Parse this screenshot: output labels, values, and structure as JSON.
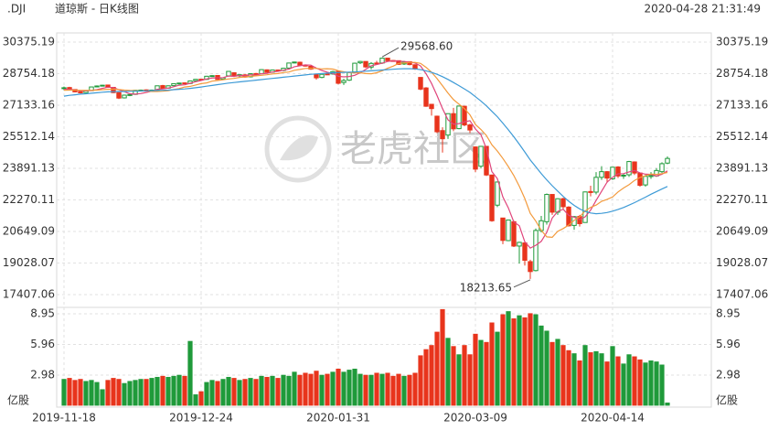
{
  "header": {
    "symbol": ".DJI",
    "name": "道琼斯 - 日K线图",
    "time": "2020-04-28 21:31:49"
  },
  "watermark": "老虎社区",
  "chart_data": {
    "type": "candlestick",
    "categories": [
      "2019-11-18",
      null,
      null,
      null,
      null,
      null,
      null,
      null,
      null,
      null,
      null,
      null,
      null,
      null,
      null,
      null,
      null,
      null,
      null,
      null,
      null,
      null,
      null,
      null,
      null,
      "2019-12-24",
      null,
      null,
      null,
      null,
      null,
      null,
      null,
      null,
      null,
      null,
      null,
      null,
      null,
      null,
      null,
      null,
      null,
      null,
      null,
      null,
      null,
      null,
      null,
      null,
      "2020-01-31",
      null,
      null,
      null,
      null,
      null,
      null,
      null,
      null,
      null,
      null,
      null,
      null,
      null,
      null,
      null,
      null,
      null,
      null,
      null,
      null,
      null,
      null,
      null,
      null,
      "2020-03-09",
      null,
      null,
      null,
      null,
      null,
      null,
      null,
      null,
      null,
      null,
      null,
      null,
      null,
      null,
      null,
      null,
      null,
      null,
      null,
      null,
      null,
      null,
      null,
      null,
      "2020-04-14",
      null,
      null,
      null,
      null,
      null,
      null,
      null,
      null,
      null,
      null
    ],
    "open": [
      28000,
      28040,
      27940,
      27830,
      27780,
      27880,
      28080,
      28130,
      28170,
      28050,
      27780,
      27510,
      27660,
      27690,
      27910,
      27920,
      27890,
      27920,
      28140,
      28010,
      28140,
      28250,
      28280,
      28250,
      28390,
      28470,
      28460,
      28630,
      28660,
      28470,
      28640,
      28800,
      28640,
      28690,
      28590,
      28760,
      28750,
      28950,
      28830,
      28940,
      28920,
      29040,
      29310,
      29340,
      29190,
      29130,
      28720,
      28560,
      28740,
      28740,
      28870,
      28300,
      28420,
      28840,
      29310,
      29380,
      29090,
      29300,
      29300,
      29550,
      29430,
      29420,
      29250,
      29370,
      29210,
      28560,
      28020,
      27180,
      26570,
      25830,
      25600,
      26700,
      25930,
      27080,
      26120,
      24990,
      24000,
      25020,
      23550,
      22000,
      21340,
      20180,
      21150,
      19900,
      20060,
      19100,
      18640,
      20700,
      21150,
      22550,
      21640,
      22330,
      21900,
      20960,
      21420,
      21110,
      22700,
      22670,
      23430,
      23720,
      23350,
      23960,
      23500,
      23560,
      24220,
      23650,
      23040,
      23470,
      23500,
      23720,
      24160
    ],
    "high": [
      28090,
      28080,
      27950,
      27850,
      27900,
      28090,
      28150,
      28180,
      28180,
      28070,
      27800,
      27680,
      27720,
      27920,
      27940,
      27950,
      27940,
      28140,
      28180,
      28150,
      28260,
      28290,
      28300,
      28400,
      28480,
      28480,
      28640,
      28670,
      28670,
      28560,
      28880,
      28820,
      28720,
      28730,
      28780,
      28790,
      28980,
      28970,
      28960,
      28960,
      29060,
      29320,
      29370,
      29370,
      29230,
      29170,
      28730,
      28760,
      28770,
      28900,
      28880,
      28490,
      28850,
      29320,
      29410,
      29390,
      29350,
      29410,
      29568.6,
      29560,
      29450,
      29420,
      29410,
      29370,
      29230,
      28580,
      28060,
      27200,
      26600,
      26000,
      26710,
      27000,
      27110,
      27100,
      26180,
      25020,
      25020,
      25020,
      23560,
      23190,
      21340,
      21260,
      21200,
      20120,
      20100,
      19200,
      20800,
      21450,
      22600,
      22550,
      22350,
      22380,
      21950,
      21450,
      21500,
      22700,
      23000,
      23700,
      24000,
      23750,
      23950,
      24000,
      23600,
      24270,
      24250,
      23650,
      23550,
      23700,
      23900,
      24200,
      24500
    ],
    "low": [
      27900,
      27900,
      27800,
      27730,
      27750,
      27860,
      28060,
      28100,
      28020,
      27750,
      27450,
      27480,
      27600,
      27660,
      27870,
      27850,
      27860,
      27900,
      27980,
      27990,
      28100,
      28230,
      28230,
      28220,
      28360,
      28440,
      28440,
      28600,
      28440,
      28450,
      28600,
      28580,
      28560,
      28550,
      28560,
      28700,
      28730,
      28800,
      28800,
      28890,
      28880,
      29020,
      29280,
      29150,
      29120,
      28950,
      28440,
      28520,
      28700,
      28700,
      28200,
      28170,
      28380,
      28800,
      29250,
      29050,
      28970,
      29240,
      29250,
      29380,
      29380,
      29200,
      29200,
      29180,
      28950,
      27900,
      27050,
      26600,
      25700,
      24700,
      25400,
      25800,
      25900,
      26050,
      25700,
      23700,
      23900,
      23500,
      21150,
      21900,
      20000,
      20150,
      19850,
      19000,
      18900,
      18213.65,
      18600,
      20600,
      21000,
      21500,
      21500,
      21800,
      20900,
      20740,
      20900,
      21100,
      22450,
      22550,
      23300,
      23150,
      23300,
      23400,
      23350,
      23450,
      23550,
      22950,
      22950,
      23350,
      23450,
      23650,
      24100
    ],
    "close": [
      28030,
      27930,
      27820,
      27770,
      27870,
      28070,
      28120,
      28160,
      28050,
      27780,
      27500,
      27650,
      27680,
      27900,
      27910,
      27880,
      27910,
      28130,
      28000,
      28130,
      28240,
      28270,
      28240,
      28380,
      28460,
      28450,
      28620,
      28650,
      28460,
      28540,
      28870,
      28630,
      28700,
      28580,
      28750,
      28740,
      28960,
      28820,
      28940,
      28910,
      29030,
      29300,
      29350,
      29190,
      29150,
      28990,
      28540,
      28720,
      28730,
      28860,
      28260,
      28400,
      28810,
      29290,
      29380,
      29100,
      29280,
      29280,
      29550,
      29420,
      29400,
      29230,
      29350,
      29220,
      28990,
      27960,
      27080,
      26960,
      25770,
      25410,
      26700,
      25920,
      27090,
      26120,
      25860,
      23850,
      25020,
      23550,
      21200,
      23190,
      20190,
      21240,
      19900,
      20090,
      19170,
      18590,
      20700,
      21200,
      22550,
      21640,
      22330,
      21920,
      20940,
      21410,
      21050,
      22680,
      22650,
      23430,
      23720,
      23390,
      23950,
      23500,
      23540,
      24240,
      23650,
      23020,
      23480,
      23520,
      23780,
      24130,
      24400
    ],
    "up_color": "#1f9a3a",
    "down_color": "#e8341c",
    "ylim": [
      17407.06,
      30375.19
    ],
    "yticks": [
      30375.19,
      28754.18,
      27133.16,
      25512.14,
      23891.13,
      22270.11,
      20649.09,
      19028.07,
      17407.06
    ],
    "grid": true,
    "moving_averages": [
      {
        "color": "#e0457b",
        "values": [
          27950,
          27950,
          27920,
          27880,
          27880,
          27890,
          27930,
          28000,
          28060,
          28040,
          27930,
          27830,
          27720,
          27700,
          27730,
          27790,
          27850,
          27950,
          27970,
          28010,
          28080,
          28160,
          28180,
          28260,
          28340,
          28400,
          28480,
          28530,
          28540,
          28550,
          28630,
          28620,
          28660,
          28650,
          28700,
          28680,
          28750,
          28770,
          28840,
          28870,
          28930,
          28990,
          29110,
          29160,
          29200,
          29190,
          29040,
          28920,
          28830,
          28760,
          28620,
          28590,
          28610,
          28670,
          28800,
          28970,
          29160,
          29220,
          29290,
          29380,
          29410,
          29400,
          29380,
          29350,
          29300,
          29150,
          28750,
          28250,
          27630,
          26960,
          26380,
          26160,
          26190,
          26280,
          26340,
          25910,
          25620,
          24900,
          23720,
          23360,
          22420,
          21860,
          21140,
          20940,
          20120,
          19800,
          19940,
          20140,
          20600,
          21340,
          21680,
          21790,
          21480,
          21380,
          21260,
          21400,
          21750,
          22240,
          22710,
          23180,
          23430,
          23610,
          23620,
          23710,
          23780,
          23660,
          23590,
          23580,
          23490,
          23590,
          23760
        ]
      },
      {
        "color": "#f39a3c",
        "values": [
          27900,
          27910,
          27910,
          27900,
          27900,
          27900,
          27910,
          27930,
          27950,
          27960,
          27940,
          27910,
          27890,
          27880,
          27860,
          27860,
          27840,
          27840,
          27850,
          27880,
          27940,
          27990,
          28070,
          28100,
          28170,
          28240,
          28280,
          28370,
          28400,
          28440,
          28480,
          28510,
          28560,
          28590,
          28620,
          28640,
          28670,
          28700,
          28740,
          28760,
          28810,
          28840,
          28930,
          28970,
          29020,
          29030,
          29020,
          29000,
          29010,
          28990,
          28910,
          28850,
          28800,
          28790,
          28800,
          28760,
          28750,
          28800,
          28900,
          29030,
          29140,
          29280,
          29300,
          29330,
          29330,
          29280,
          29080,
          28830,
          28500,
          28130,
          27760,
          27420,
          27190,
          26960,
          26640,
          26140,
          25890,
          25580,
          25100,
          24780,
          24400,
          23980,
          23520,
          22970,
          22340,
          21580,
          21180,
          20710,
          20370,
          20350,
          20660,
          20800,
          20980,
          21220,
          21400,
          21700,
          21890,
          22000,
          22200,
          22300,
          22420,
          22680,
          22880,
          23050,
          23270,
          23420,
          23510,
          23600,
          23580,
          23620,
          23680
        ]
      },
      {
        "color": "#3d9ad6",
        "values": [
          27600,
          27640,
          27670,
          27700,
          27720,
          27750,
          27770,
          27800,
          27820,
          27830,
          27840,
          27840,
          27850,
          27850,
          27860,
          27870,
          27880,
          27890,
          27900,
          27910,
          27930,
          27950,
          27970,
          28000,
          28030,
          28070,
          28110,
          28150,
          28190,
          28230,
          28270,
          28300,
          28330,
          28360,
          28390,
          28420,
          28450,
          28480,
          28510,
          28540,
          28570,
          28600,
          28630,
          28660,
          28690,
          28720,
          28740,
          28760,
          28780,
          28800,
          28810,
          28820,
          28830,
          28840,
          28860,
          28880,
          28900,
          28920,
          28940,
          28960,
          28980,
          29000,
          29010,
          29010,
          29000,
          28960,
          28900,
          28820,
          28720,
          28600,
          28460,
          28300,
          28140,
          27970,
          27790,
          27570,
          27350,
          27100,
          26820,
          26540,
          26210,
          25870,
          25510,
          25130,
          24730,
          24320,
          23970,
          23620,
          23300,
          23000,
          22720,
          22450,
          22200,
          21990,
          21810,
          21680,
          21600,
          21560,
          21580,
          21620,
          21690,
          21780,
          21880,
          22000,
          22130,
          22270,
          22410,
          22560,
          22700,
          22830,
          22960
        ]
      }
    ],
    "annotations": [
      {
        "kind": "high",
        "value": 29568.6,
        "label": "29568.60"
      },
      {
        "kind": "low",
        "value": 18213.65,
        "label": "18213.65"
      }
    ],
    "volume": {
      "type": "bar",
      "unit": "亿股",
      "values": [
        2.6,
        2.7,
        2.5,
        2.6,
        2.4,
        2.5,
        2.3,
        1.6,
        2.5,
        2.7,
        2.6,
        2.2,
        2.4,
        2.5,
        2.6,
        2.6,
        2.7,
        2.8,
        2.9,
        2.8,
        2.9,
        3.0,
        2.9,
        6.3,
        1.1,
        1.4,
        2.3,
        2.5,
        2.4,
        2.6,
        2.8,
        2.7,
        2.5,
        2.6,
        2.7,
        2.6,
        2.9,
        2.8,
        2.9,
        2.7,
        3.0,
        2.9,
        3.3,
        3.0,
        3.2,
        3.1,
        3.4,
        3.0,
        3.1,
        3.3,
        3.6,
        3.3,
        3.5,
        3.6,
        3.1,
        3.0,
        3.0,
        3.2,
        3.1,
        3.2,
        2.9,
        3.1,
        2.9,
        3.0,
        3.2,
        4.9,
        5.5,
        5.9,
        7.2,
        9.4,
        6.6,
        5.8,
        5.0,
        5.9,
        5.0,
        7.0,
        6.4,
        6.2,
        8.1,
        7.2,
        8.9,
        9.2,
        8.5,
        8.8,
        8.6,
        9.0,
        8.9,
        7.8,
        7.3,
        6.2,
        6.5,
        5.9,
        5.4,
        5.1,
        4.4,
        5.9,
        5.2,
        5.3,
        5.1,
        4.3,
        5.8,
        4.8,
        4.1,
        5.0,
        4.8,
        4.5,
        4.2,
        4.4,
        4.3,
        4.0,
        0.3
      ],
      "ylim": [
        0,
        9.57
      ],
      "yticks": [
        8.95,
        5.96,
        2.98
      ]
    }
  }
}
